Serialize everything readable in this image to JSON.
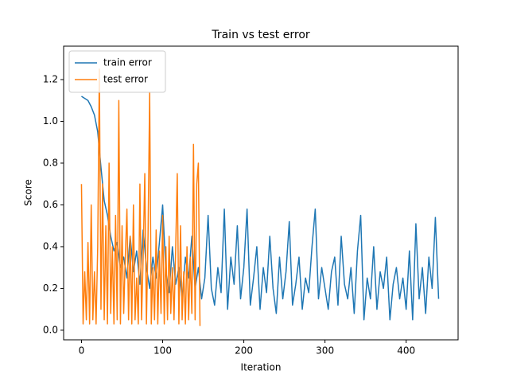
{
  "chart_data": {
    "type": "line",
    "title": "Train vs test error",
    "x_label": "Iteration",
    "y_label": "Score",
    "xlim": [
      -22,
      464
    ],
    "xticks": [
      0,
      100,
      200,
      300,
      400
    ],
    "ylim": [
      -0.046,
      1.36
    ],
    "yticks": [
      {
        "value": 0,
        "label": "0.0"
      },
      {
        "value": 0.2,
        "label": "0.2"
      },
      {
        "value": 0.4,
        "label": "0.4"
      },
      {
        "value": 0.6,
        "label": "0.6"
      },
      {
        "value": 0.8,
        "label": "0.8"
      },
      {
        "value": 1.0,
        "label": "1.0"
      },
      {
        "value": 1.2,
        "label": "1.2"
      }
    ],
    "legend": "upper left",
    "series": [
      {
        "name": "train error",
        "color": "#1f77b4",
        "x": [
          0,
          4,
          8,
          12,
          16,
          20,
          24,
          28,
          32,
          36,
          40,
          44,
          48,
          52,
          56,
          60,
          64,
          68,
          72,
          76,
          80,
          84,
          88,
          92,
          96,
          100,
          104,
          108,
          112,
          116,
          120,
          124,
          128,
          132,
          136,
          140,
          144,
          148,
          152,
          156,
          160,
          164,
          168,
          172,
          176,
          180,
          184,
          188,
          192,
          196,
          200,
          204,
          208,
          212,
          216,
          220,
          224,
          228,
          232,
          236,
          240,
          244,
          248,
          252,
          256,
          260,
          264,
          268,
          272,
          276,
          280,
          284,
          288,
          292,
          296,
          300,
          304,
          308,
          312,
          316,
          320,
          324,
          328,
          332,
          336,
          340,
          344,
          348,
          352,
          356,
          360,
          364,
          368,
          372,
          376,
          380,
          384,
          388,
          392,
          396,
          400,
          404,
          408,
          412,
          416,
          420,
          424,
          428,
          432,
          436,
          440
        ],
        "values": [
          1.12,
          1.11,
          1.1,
          1.07,
          1.03,
          0.95,
          0.78,
          0.62,
          0.55,
          0.45,
          0.38,
          0.42,
          0.3,
          0.35,
          0.25,
          0.45,
          0.28,
          0.38,
          0.22,
          0.48,
          0.3,
          0.2,
          0.35,
          0.25,
          0.42,
          0.6,
          0.28,
          0.18,
          0.4,
          0.22,
          0.3,
          0.15,
          0.35,
          0.25,
          0.45,
          0.2,
          0.3,
          0.15,
          0.25,
          0.55,
          0.2,
          0.12,
          0.3,
          0.18,
          0.58,
          0.1,
          0.35,
          0.22,
          0.5,
          0.15,
          0.3,
          0.58,
          0.12,
          0.25,
          0.4,
          0.1,
          0.3,
          0.18,
          0.45,
          0.2,
          0.08,
          0.35,
          0.15,
          0.28,
          0.52,
          0.12,
          0.22,
          0.35,
          0.1,
          0.25,
          0.18,
          0.4,
          0.58,
          0.15,
          0.3,
          0.2,
          0.1,
          0.28,
          0.35,
          0.12,
          0.45,
          0.22,
          0.15,
          0.3,
          0.08,
          0.38,
          0.55,
          0.05,
          0.25,
          0.15,
          0.4,
          0.1,
          0.28,
          0.2,
          0.35,
          0.05,
          0.22,
          0.3,
          0.15,
          0.25,
          0.1,
          0.38,
          0.05,
          0.51,
          0.15,
          0.3,
          0.08,
          0.35,
          0.2,
          0.54,
          0.15
        ]
      },
      {
        "name": "test error",
        "color": "#ff7f0e",
        "x": [
          0,
          2,
          4,
          6,
          8,
          10,
          12,
          14,
          16,
          18,
          20,
          22,
          24,
          26,
          28,
          30,
          32,
          34,
          36,
          38,
          40,
          42,
          44,
          46,
          48,
          50,
          52,
          54,
          56,
          58,
          60,
          62,
          64,
          66,
          68,
          70,
          72,
          74,
          76,
          78,
          80,
          82,
          84,
          86,
          88,
          90,
          92,
          94,
          96,
          98,
          100,
          102,
          104,
          106,
          108,
          110,
          112,
          114,
          116,
          118,
          120,
          122,
          124,
          126,
          128,
          130,
          132,
          134,
          136,
          138,
          140,
          142,
          144,
          146
        ],
        "values": [
          0.7,
          0.03,
          0.28,
          0.05,
          0.42,
          0.03,
          0.6,
          0.05,
          0.28,
          0.03,
          0.4,
          1.25,
          0.1,
          0.7,
          0.05,
          0.5,
          0.03,
          0.8,
          0.08,
          0.4,
          0.03,
          0.55,
          0.05,
          1.1,
          0.03,
          0.5,
          0.08,
          0.35,
          0.58,
          0.05,
          0.45,
          0.03,
          0.6,
          0.05,
          0.25,
          0.03,
          0.7,
          0.05,
          0.35,
          0.75,
          0.03,
          0.45,
          1.14,
          0.03,
          0.3,
          0.05,
          0.48,
          0.03,
          0.38,
          0.08,
          0.55,
          0.03,
          0.4,
          0.05,
          0.45,
          0.08,
          0.3,
          0.05,
          0.38,
          0.75,
          0.03,
          0.5,
          0.05,
          0.28,
          0.03,
          0.4,
          0.05,
          0.35,
          0.08,
          0.89,
          0.05,
          0.7,
          0.8,
          0.02
        ]
      }
    ]
  }
}
